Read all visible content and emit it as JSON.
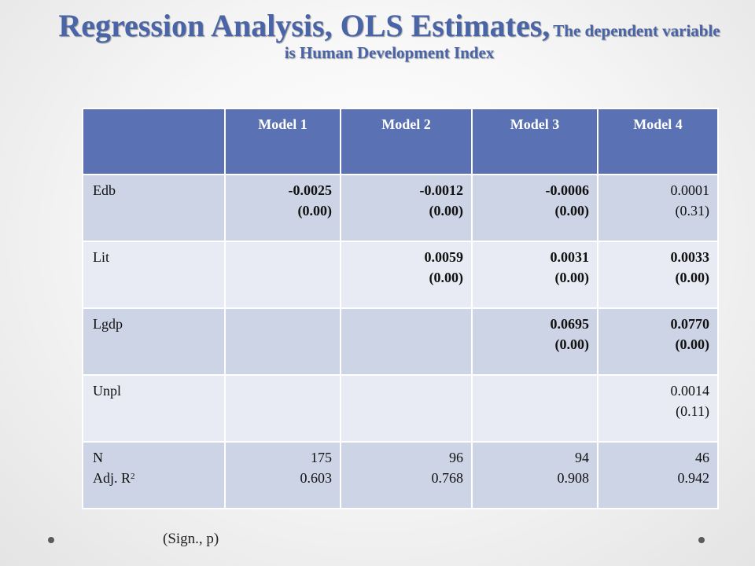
{
  "title": {
    "main": "Regression Analysis, OLS Estimates,",
    "sub_part1": "The dependent variable",
    "sub_part2": "is Human Development Index"
  },
  "table": {
    "headers": [
      "",
      "Model 1",
      "Model 2",
      "Model 3",
      "Model 4"
    ],
    "rows": [
      {
        "label": "Edb",
        "cells": [
          {
            "coef": "-0.0025",
            "p": "(0.00)",
            "bold": true
          },
          {
            "coef": "-0.0012",
            "p": "(0.00)",
            "bold": true
          },
          {
            "coef": "-0.0006",
            "p": "(0.00)",
            "bold": true
          },
          {
            "coef": "0.0001",
            "p": "(0.31)",
            "bold": false
          }
        ]
      },
      {
        "label": "Lit",
        "cells": [
          {
            "coef": "",
            "p": "",
            "bold": false
          },
          {
            "coef": "0.0059",
            "p": "(0.00)",
            "bold": true
          },
          {
            "coef": "0.0031",
            "p": "(0.00)",
            "bold": true
          },
          {
            "coef": "0.0033",
            "p": "(0.00)",
            "bold": true
          }
        ]
      },
      {
        "label": "Lgdp",
        "cells": [
          {
            "coef": "",
            "p": "",
            "bold": false
          },
          {
            "coef": "",
            "p": "",
            "bold": false
          },
          {
            "coef": "0.0695",
            "p": "(0.00)",
            "bold": true
          },
          {
            "coef": "0.0770",
            "p": "(0.00)",
            "bold": true
          }
        ]
      },
      {
        "label": "Unpl",
        "cells": [
          {
            "coef": "",
            "p": "",
            "bold": false
          },
          {
            "coef": "",
            "p": "",
            "bold": false
          },
          {
            "coef": "",
            "p": "",
            "bold": false
          },
          {
            "coef": "0.0014",
            "p": "(0.11)",
            "bold": false
          }
        ]
      }
    ],
    "summary": {
      "label_n": "N",
      "label_r2": "Adj. R",
      "label_r2_sup": "2",
      "n": [
        "175",
        "96",
        "94",
        "46"
      ],
      "r2": [
        "0.603",
        "0.768",
        "0.908",
        "0.942"
      ]
    }
  },
  "note": "(Sign., p)",
  "colors": {
    "title": "#4a64a8",
    "header_bg": "#5a72b4",
    "band_dark": "#cdd4e6",
    "band_light": "#e8ebf3"
  }
}
